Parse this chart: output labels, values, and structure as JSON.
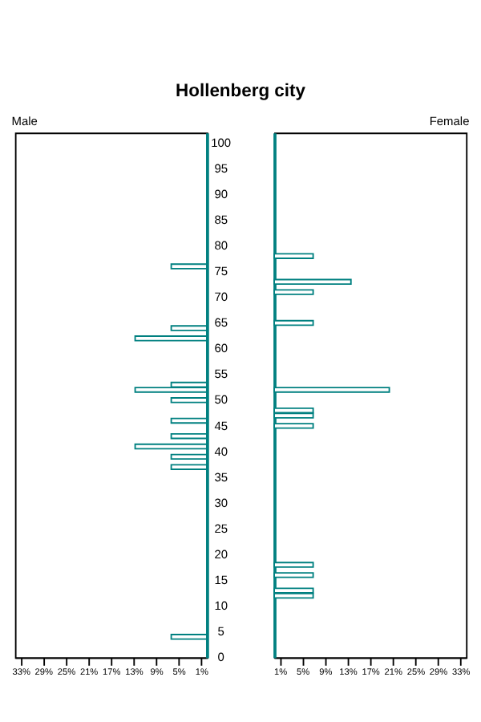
{
  "chart_data": [
    {
      "type": "bar",
      "orientation": "horizontal",
      "title": "Male",
      "annotations": [
        "Hollenberg city"
      ],
      "x": [
        76,
        64,
        62,
        53,
        52,
        50,
        46,
        43,
        41,
        39,
        37,
        4
      ],
      "values": [
        6.3,
        6.3,
        12.7,
        6.3,
        12.7,
        6.3,
        6.3,
        6.3,
        12.7,
        6.3,
        6.3,
        6.3
      ],
      "color": "#008080",
      "xlim": [
        34,
        0
      ],
      "xticks": [
        {
          "value": 33,
          "label": "33%"
        },
        {
          "value": 29,
          "label": "29%"
        },
        {
          "value": 25,
          "label": "25%"
        },
        {
          "value": 21,
          "label": "21%"
        },
        {
          "value": 17,
          "label": "17%"
        },
        {
          "value": 13,
          "label": "13%"
        },
        {
          "value": 9,
          "label": "9%"
        },
        {
          "value": 5,
          "label": "5%"
        },
        {
          "value": 1,
          "label": "1%"
        }
      ],
      "ylim": [
        0,
        102
      ],
      "yticks": [
        0,
        5,
        10,
        15,
        20,
        25,
        30,
        35,
        40,
        45,
        50,
        55,
        60,
        65,
        70,
        75,
        80,
        85,
        90,
        95,
        100
      ],
      "grid": false
    },
    {
      "type": "bar",
      "orientation": "horizontal",
      "title": "Female",
      "x": [
        78,
        73,
        71,
        65,
        52,
        48,
        47,
        45,
        18,
        16,
        13,
        12
      ],
      "values": [
        6.9,
        13.6,
        6.9,
        6.9,
        20.4,
        6.9,
        6.9,
        6.9,
        6.9,
        6.9,
        6.9,
        6.9
      ],
      "color": "#008080",
      "xlim": [
        0,
        34
      ],
      "xticks": [
        {
          "value": 1,
          "label": "1%"
        },
        {
          "value": 5,
          "label": "5%"
        },
        {
          "value": 9,
          "label": "9%"
        },
        {
          "value": 13,
          "label": "13%"
        },
        {
          "value": 17,
          "label": "17%"
        },
        {
          "value": 21,
          "label": "21%"
        },
        {
          "value": 25,
          "label": "25%"
        },
        {
          "value": 29,
          "label": "29%"
        },
        {
          "value": 33,
          "label": "33%"
        }
      ],
      "ylim": [
        0,
        102
      ],
      "yticks": [
        0,
        5,
        10,
        15,
        20,
        25,
        30,
        35,
        40,
        45,
        50,
        55,
        60,
        65,
        70,
        75,
        80,
        85,
        90,
        95,
        100
      ],
      "tick_labels": "x",
      "grid": false
    }
  ]
}
